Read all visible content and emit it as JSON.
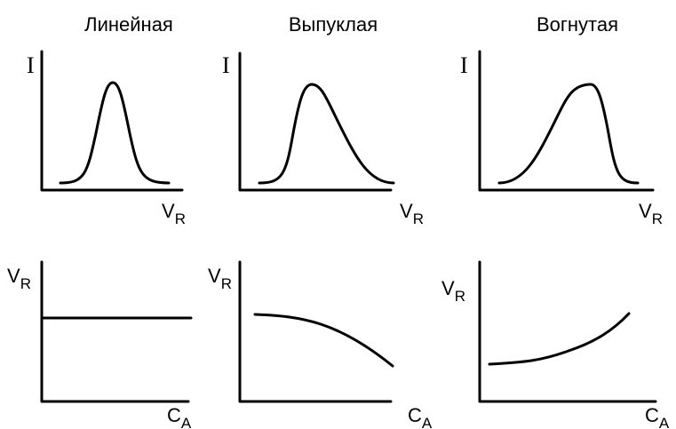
{
  "columns": [
    {
      "title": "Линейная",
      "top": {
        "y_label": "I",
        "x_label": {
          "base": "V",
          "sub": "R"
        }
      },
      "bottom": {
        "y_label": {
          "base": "V",
          "sub": "R"
        },
        "x_label": {
          "base": "C",
          "sub": "A"
        }
      }
    },
    {
      "title": "Выпуклая",
      "top": {
        "y_label": "I",
        "x_label": {
          "base": "V",
          "sub": "R"
        }
      },
      "bottom": {
        "y_label": {
          "base": "V",
          "sub": "R"
        },
        "x_label": {
          "base": "C",
          "sub": "A"
        }
      }
    },
    {
      "title": "Вогнутая",
      "top": {
        "y_label": "I",
        "x_label": {
          "base": "V",
          "sub": "R"
        }
      },
      "bottom": {
        "y_label": {
          "base": "V",
          "sub": "R"
        },
        "x_label": {
          "base": "C",
          "sub": "A"
        }
      }
    }
  ]
}
